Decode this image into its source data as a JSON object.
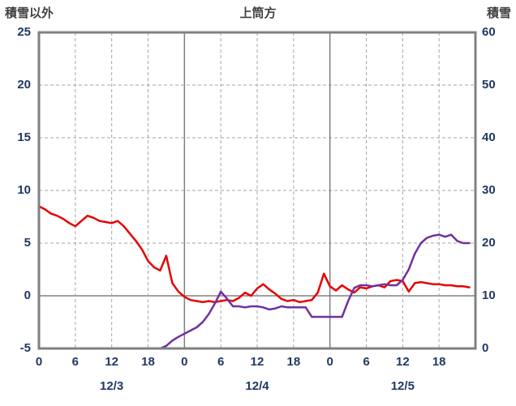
{
  "header": {
    "left_axis_title": "積雪以外",
    "title": "上筒方",
    "right_axis_title": "積雪"
  },
  "colors": {
    "red_line": "#e60000",
    "purple_line": "#7030a0",
    "grid_dashed": "#a6a6a6",
    "grid_solid": "#808080",
    "border": "#808080",
    "tick_text": "#203864",
    "title_text": "#404040"
  },
  "chart_data": {
    "type": "line",
    "title": "上筒方",
    "left_axis_label": "積雪以外",
    "right_axis_label": "積雪",
    "left_axis": {
      "min": -5,
      "max": 25,
      "ticks": [
        25,
        20,
        15,
        10,
        5,
        0,
        -5
      ]
    },
    "right_axis": {
      "min": 0,
      "max": 60,
      "ticks": [
        60,
        50,
        40,
        30,
        20,
        10,
        0
      ]
    },
    "x_axis": {
      "min_hour": 0,
      "max_hour": 72,
      "tick_hours": [
        0,
        6,
        12,
        18,
        24,
        30,
        36,
        42,
        48,
        54,
        60,
        66
      ],
      "tick_labels": [
        "0",
        "6",
        "12",
        "18",
        "0",
        "6",
        "12",
        "18",
        "0",
        "6",
        "12",
        "18"
      ],
      "day_boundaries": [
        24,
        48
      ],
      "date_labels": [
        {
          "label": "12/3",
          "hour": 12
        },
        {
          "label": "12/4",
          "hour": 36
        },
        {
          "label": "12/5",
          "hour": 60
        }
      ]
    },
    "series": [
      {
        "name": "積雪以外",
        "axis": "left",
        "color": "#e60000",
        "values": [
          8.5,
          8.2,
          7.8,
          7.6,
          7.3,
          6.9,
          6.6,
          7.1,
          7.6,
          7.4,
          7.1,
          7.0,
          6.9,
          7.1,
          6.6,
          5.9,
          5.2,
          4.4,
          3.3,
          2.7,
          2.4,
          3.8,
          1.2,
          0.4,
          -0.1,
          -0.4,
          -0.5,
          -0.6,
          -0.5,
          -0.6,
          -0.5,
          -0.4,
          -0.5,
          -0.2,
          0.3,
          0.0,
          0.7,
          1.1,
          0.6,
          0.2,
          -0.3,
          -0.5,
          -0.4,
          -0.6,
          -0.5,
          -0.4,
          0.3,
          2.1,
          0.9,
          0.5,
          1.0,
          0.6,
          0.3,
          0.8,
          0.7,
          0.9,
          1.0,
          0.8,
          1.4,
          1.5,
          1.4,
          0.4,
          1.2,
          1.3,
          1.2,
          1.1,
          1.1,
          1.0,
          1.0,
          0.9,
          0.9,
          0.8
        ]
      },
      {
        "name": "積雪",
        "axis": "right",
        "color": "#7030a0",
        "values": [
          0,
          0,
          0,
          0,
          0,
          0,
          0,
          0,
          0,
          0,
          0,
          0,
          0,
          0,
          0,
          0,
          0,
          0,
          0,
          0,
          0,
          0.5,
          1.5,
          2.2,
          2.8,
          3.4,
          4.0,
          5.0,
          6.5,
          8.5,
          10.8,
          9.5,
          8.0,
          8.0,
          7.8,
          8.0,
          8.0,
          7.8,
          7.4,
          7.6,
          8.0,
          7.8,
          7.8,
          7.8,
          7.8,
          6.0,
          6.0,
          6.0,
          6.0,
          6.0,
          6.0,
          9.0,
          11.5,
          12.0,
          12.0,
          11.8,
          12.0,
          12.2,
          12.0,
          12.0,
          13.0,
          15.0,
          18.0,
          20.0,
          21.0,
          21.4,
          21.6,
          21.2,
          21.6,
          20.4,
          20.0,
          20.0
        ]
      }
    ]
  }
}
